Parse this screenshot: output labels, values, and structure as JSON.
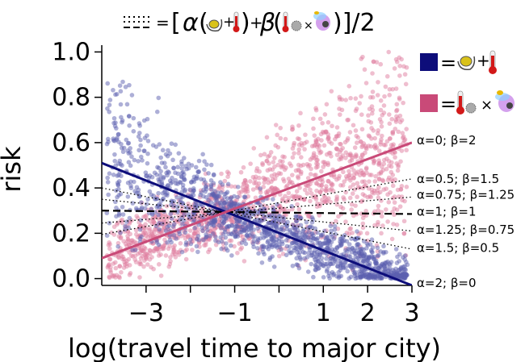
{
  "chart_data": {
    "type": "scatter",
    "title": "= [α(⟨icon⟩+⟨icon⟩)+β(⟨icon⟩×⟨icon⟩)]/2",
    "title_parts": {
      "equals": "=",
      "open": "[",
      "alpha": "α",
      "lparen": "(",
      "plus": "+",
      "rparen": ")",
      "beta": "β",
      "times": "×",
      "close": ")]/2"
    },
    "xlabel": "log(travel time to major city)",
    "ylabel": "risk",
    "xlim": [
      -4.0,
      3.0
    ],
    "ylim": [
      -0.03,
      1.03
    ],
    "x_ticks": [
      {
        "value": -3,
        "label": "−3"
      },
      {
        "value": -2,
        "label": ""
      },
      {
        "value": -1,
        "label": "−1"
      },
      {
        "value": 0,
        "label": ""
      },
      {
        "value": 1,
        "label": "1"
      },
      {
        "value": 2,
        "label": "2"
      },
      {
        "value": 3,
        "label": "3"
      }
    ],
    "y_ticks": [
      {
        "value": 0.0,
        "label": "0.0"
      },
      {
        "value": 0.2,
        "label": "0.2"
      },
      {
        "value": 0.4,
        "label": "0.4"
      },
      {
        "value": 0.6,
        "label": "0.6"
      },
      {
        "value": 0.8,
        "label": "0.8"
      },
      {
        "value": 1.0,
        "label": "1.0"
      }
    ],
    "grid": false,
    "legend_placement": "right",
    "legend": [
      {
        "color": "#0d0d7a",
        "symbol_equals": "=",
        "plus": "+",
        "icons": [
          "lemon-icon",
          "thermometer-icon"
        ]
      },
      {
        "color": "#c94a78",
        "symbol_equals": "=",
        "times": "×",
        "icons": [
          "thermometer-icon",
          "virus-icon",
          "mosquito-icon"
        ]
      }
    ],
    "series": [
      {
        "color": "#5b5fb0",
        "marker": "circle",
        "trend": "decreasing",
        "line": {
          "x": [
            -4.0,
            3.0
          ],
          "y": [
            0.51,
            -0.03
          ],
          "color": "#0d0d7a"
        }
      },
      {
        "color": "#e07ea0",
        "marker": "circle",
        "trend": "increasing",
        "line": {
          "x": [
            -4.0,
            3.0
          ],
          "y": [
            0.09,
            0.6
          ],
          "color": "#c94a78"
        }
      }
    ],
    "combination_lines": [
      {
        "label": "α=0; β=2",
        "style": "none",
        "y_right": 0.6
      },
      {
        "label": "α=0.5; β=1.5",
        "style": "dotted",
        "y_left": 0.195,
        "y_right": 0.44
      },
      {
        "label": "α=0.75; β=1.25",
        "style": "dotted",
        "y_left": 0.245,
        "y_right": 0.36
      },
      {
        "label": "α=1; β=1",
        "style": "dashed",
        "y_left": 0.3,
        "y_right": 0.285
      },
      {
        "label": "α=1.25; β=0.75",
        "style": "dotted",
        "y_left": 0.35,
        "y_right": 0.21
      },
      {
        "label": "α=1.5; β=0.5",
        "style": "dotted",
        "y_left": 0.4,
        "y_right": 0.13
      },
      {
        "label": "α=2; β=0",
        "style": "none",
        "y_right": -0.03
      }
    ],
    "label_positions_y": [
      0.61,
      0.44,
      0.37,
      0.295,
      0.215,
      0.135,
      -0.02
    ]
  },
  "colors": {
    "blue": "#0d0d7a",
    "pink": "#c94a78",
    "blue_points": "#5b5fb0",
    "pink_points": "#e07ea0"
  }
}
